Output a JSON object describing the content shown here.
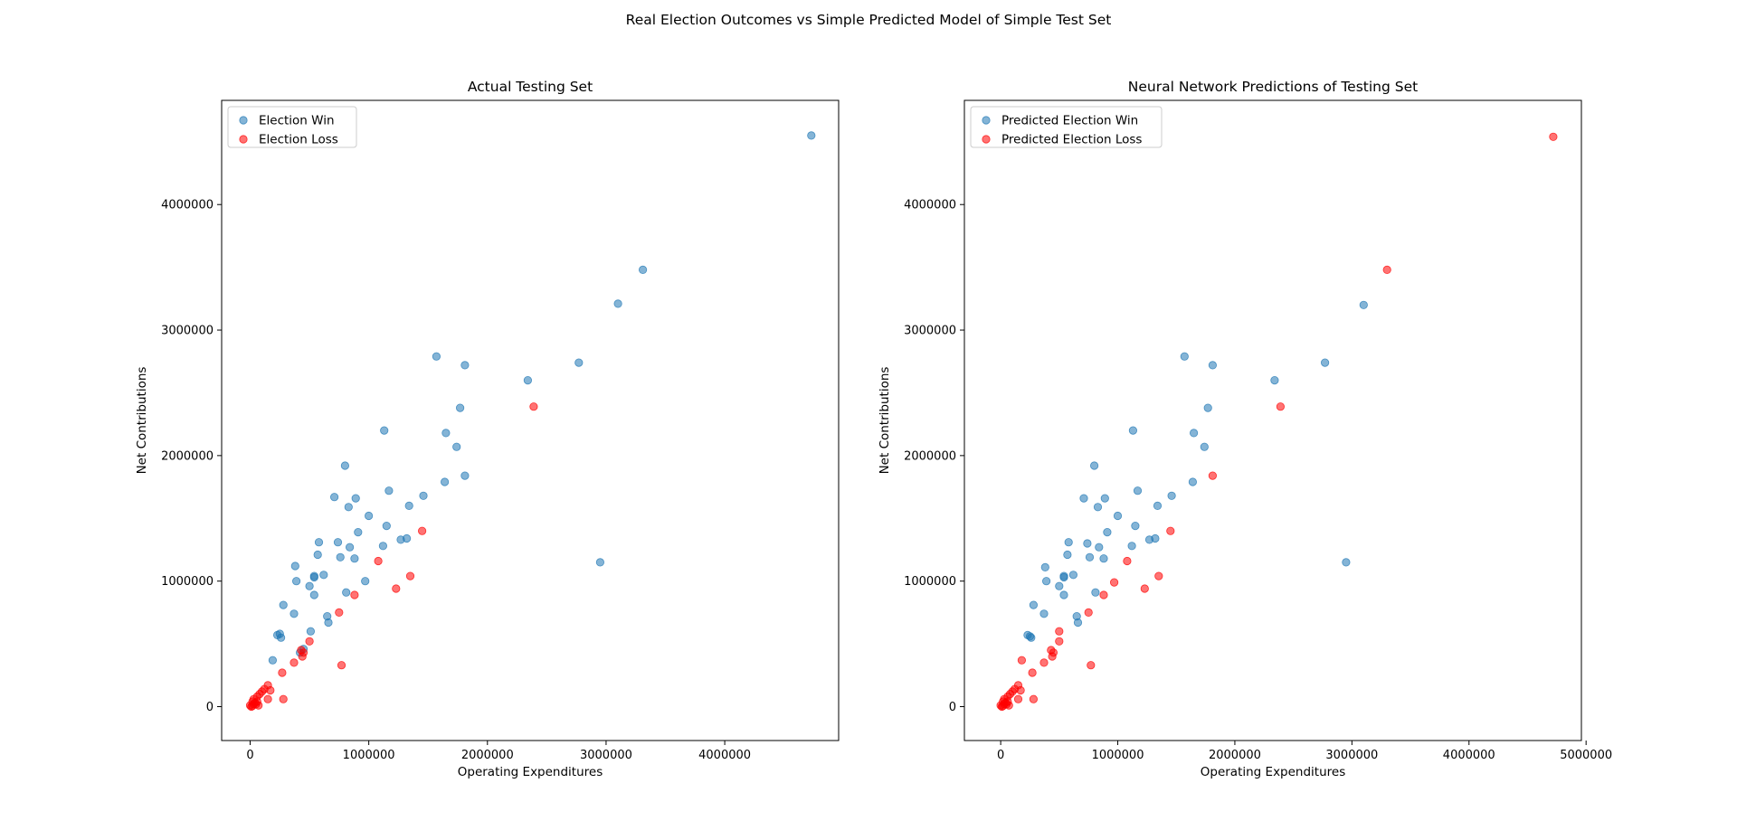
{
  "figure": {
    "suptitle": "Real Election Outcomes vs Simple Predicted Model of Simple Test Set"
  },
  "colors": {
    "win": "#1f77b4",
    "loss": "#ff0000"
  },
  "chart_data": [
    {
      "type": "scatter",
      "title": "Actual Testing Set",
      "xlabel": "Operating Expenditures",
      "ylabel": "Net Contributions",
      "xlim": [
        -240000,
        4960000
      ],
      "ylim": [
        -270000,
        4830000
      ],
      "xticks": [
        0,
        1000000,
        2000000,
        3000000,
        4000000
      ],
      "xtick_labels": [
        "0",
        "1000000",
        "2000000",
        "3000000",
        "4000000"
      ],
      "yticks": [
        0,
        1000000,
        2000000,
        3000000,
        4000000
      ],
      "ytick_labels": [
        "0",
        "1000000",
        "2000000",
        "3000000",
        "4000000"
      ],
      "legend_position": "upper-left",
      "series": [
        {
          "name": "Election Win",
          "color": "#1f77b4",
          "points": [
            [
              4730000,
              4550000
            ],
            [
              3310000,
              3480000
            ],
            [
              3100000,
              3210000
            ],
            [
              1570000,
              2790000
            ],
            [
              1810000,
              2720000
            ],
            [
              2340000,
              2600000
            ],
            [
              2770000,
              2740000
            ],
            [
              1770000,
              2380000
            ],
            [
              1130000,
              2200000
            ],
            [
              1650000,
              2180000
            ],
            [
              1740000,
              2070000
            ],
            [
              800000,
              1920000
            ],
            [
              1810000,
              1840000
            ],
            [
              1640000,
              1790000
            ],
            [
              1170000,
              1720000
            ],
            [
              710000,
              1670000
            ],
            [
              890000,
              1660000
            ],
            [
              1460000,
              1680000
            ],
            [
              830000,
              1590000
            ],
            [
              1340000,
              1600000
            ],
            [
              1000000,
              1520000
            ],
            [
              1150000,
              1440000
            ],
            [
              910000,
              1390000
            ],
            [
              1320000,
              1340000
            ],
            [
              1270000,
              1330000
            ],
            [
              580000,
              1310000
            ],
            [
              740000,
              1310000
            ],
            [
              1120000,
              1280000
            ],
            [
              840000,
              1270000
            ],
            [
              570000,
              1210000
            ],
            [
              760000,
              1190000
            ],
            [
              880000,
              1180000
            ],
            [
              380000,
              1120000
            ],
            [
              2950000,
              1150000
            ],
            [
              540000,
              1040000
            ],
            [
              620000,
              1050000
            ],
            [
              540000,
              1030000
            ],
            [
              390000,
              1000000
            ],
            [
              970000,
              1000000
            ],
            [
              500000,
              960000
            ],
            [
              810000,
              910000
            ],
            [
              540000,
              890000
            ],
            [
              280000,
              810000
            ],
            [
              370000,
              740000
            ],
            [
              650000,
              720000
            ],
            [
              660000,
              670000
            ],
            [
              250000,
              580000
            ],
            [
              230000,
              570000
            ],
            [
              260000,
              550000
            ],
            [
              510000,
              600000
            ],
            [
              450000,
              460000
            ],
            [
              420000,
              430000
            ],
            [
              190000,
              370000
            ]
          ]
        },
        {
          "name": "Election Loss",
          "color": "#ff0000",
          "points": [
            [
              2390000,
              2390000
            ],
            [
              1450000,
              1400000
            ],
            [
              1080000,
              1160000
            ],
            [
              1350000,
              1040000
            ],
            [
              1230000,
              940000
            ],
            [
              880000,
              890000
            ],
            [
              750000,
              750000
            ],
            [
              500000,
              520000
            ],
            [
              430000,
              450000
            ],
            [
              450000,
              430000
            ],
            [
              440000,
              400000
            ],
            [
              370000,
              350000
            ],
            [
              770000,
              330000
            ],
            [
              270000,
              270000
            ],
            [
              150000,
              170000
            ],
            [
              170000,
              130000
            ],
            [
              120000,
              140000
            ],
            [
              100000,
              120000
            ],
            [
              80000,
              100000
            ],
            [
              60000,
              80000
            ],
            [
              150000,
              60000
            ],
            [
              280000,
              60000
            ],
            [
              30000,
              60000
            ],
            [
              20000,
              40000
            ],
            [
              60000,
              40000
            ],
            [
              50000,
              20000
            ],
            [
              0,
              10000
            ],
            [
              10000,
              0
            ],
            [
              30000,
              20000
            ],
            [
              70000,
              10000
            ],
            [
              40000,
              30000
            ],
            [
              20000,
              5000
            ]
          ]
        }
      ]
    },
    {
      "type": "scatter",
      "title": "Neural Network Predictions of Testing Set",
      "xlabel": "Operating Expenditures",
      "ylabel": "Net Contributions",
      "xlim": [
        -310000,
        4960000
      ],
      "ylim": [
        -270000,
        4830000
      ],
      "xticks": [
        0,
        1000000,
        2000000,
        3000000,
        4000000,
        5000000
      ],
      "xtick_labels": [
        "0",
        "1000000",
        "2000000",
        "3000000",
        "4000000",
        "5000000"
      ],
      "yticks": [
        0,
        1000000,
        2000000,
        3000000,
        4000000
      ],
      "ytick_labels": [
        "0",
        "1000000",
        "2000000",
        "3000000",
        "4000000"
      ],
      "legend_position": "upper-left",
      "series": [
        {
          "name": "Predicted Election Win",
          "color": "#1f77b4",
          "points": [
            [
              3100000,
              3200000
            ],
            [
              2770000,
              2740000
            ],
            [
              2340000,
              2600000
            ],
            [
              1570000,
              2790000
            ],
            [
              1810000,
              2720000
            ],
            [
              1770000,
              2380000
            ],
            [
              1130000,
              2200000
            ],
            [
              1650000,
              2180000
            ],
            [
              1740000,
              2070000
            ],
            [
              800000,
              1920000
            ],
            [
              1640000,
              1790000
            ],
            [
              1170000,
              1720000
            ],
            [
              710000,
              1660000
            ],
            [
              890000,
              1660000
            ],
            [
              1460000,
              1680000
            ],
            [
              830000,
              1590000
            ],
            [
              1340000,
              1600000
            ],
            [
              1000000,
              1520000
            ],
            [
              1150000,
              1440000
            ],
            [
              910000,
              1390000
            ],
            [
              1320000,
              1340000
            ],
            [
              1270000,
              1330000
            ],
            [
              580000,
              1310000
            ],
            [
              740000,
              1300000
            ],
            [
              1120000,
              1280000
            ],
            [
              840000,
              1270000
            ],
            [
              570000,
              1210000
            ],
            [
              760000,
              1190000
            ],
            [
              880000,
              1180000
            ],
            [
              380000,
              1110000
            ],
            [
              2950000,
              1150000
            ],
            [
              540000,
              1040000
            ],
            [
              620000,
              1050000
            ],
            [
              540000,
              1030000
            ],
            [
              390000,
              1000000
            ],
            [
              500000,
              960000
            ],
            [
              810000,
              910000
            ],
            [
              540000,
              890000
            ],
            [
              280000,
              810000
            ],
            [
              370000,
              740000
            ],
            [
              650000,
              720000
            ],
            [
              660000,
              670000
            ],
            [
              230000,
              570000
            ],
            [
              250000,
              560000
            ],
            [
              260000,
              550000
            ]
          ]
        },
        {
          "name": "Predicted Election Loss",
          "color": "#ff0000",
          "points": [
            [
              4720000,
              4540000
            ],
            [
              3300000,
              3480000
            ],
            [
              2390000,
              2390000
            ],
            [
              1810000,
              1840000
            ],
            [
              1450000,
              1400000
            ],
            [
              1080000,
              1160000
            ],
            [
              1350000,
              1040000
            ],
            [
              970000,
              990000
            ],
            [
              1230000,
              940000
            ],
            [
              880000,
              890000
            ],
            [
              750000,
              750000
            ],
            [
              500000,
              600000
            ],
            [
              500000,
              520000
            ],
            [
              430000,
              450000
            ],
            [
              450000,
              430000
            ],
            [
              440000,
              400000
            ],
            [
              370000,
              350000
            ],
            [
              770000,
              330000
            ],
            [
              180000,
              370000
            ],
            [
              270000,
              270000
            ],
            [
              150000,
              170000
            ],
            [
              170000,
              130000
            ],
            [
              120000,
              140000
            ],
            [
              100000,
              120000
            ],
            [
              80000,
              100000
            ],
            [
              60000,
              80000
            ],
            [
              150000,
              60000
            ],
            [
              280000,
              60000
            ],
            [
              30000,
              60000
            ],
            [
              20000,
              40000
            ],
            [
              60000,
              40000
            ],
            [
              50000,
              20000
            ],
            [
              0,
              10000
            ],
            [
              10000,
              0
            ],
            [
              30000,
              20000
            ],
            [
              70000,
              10000
            ],
            [
              40000,
              30000
            ],
            [
              20000,
              5000
            ]
          ]
        }
      ]
    }
  ]
}
